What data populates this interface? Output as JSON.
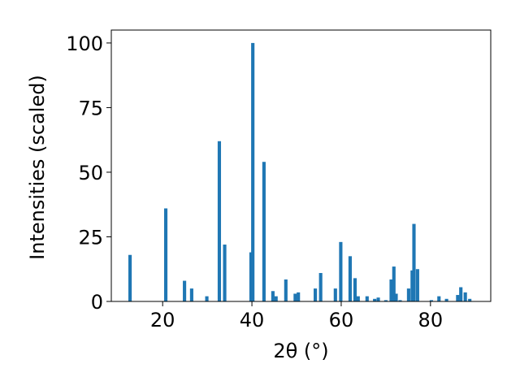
{
  "chart_data": {
    "type": "bar",
    "xlabel": "2θ (°)",
    "ylabel": "Intensities (scaled)",
    "xlim": [
      8.5,
      93.5
    ],
    "ylim": [
      0,
      105
    ],
    "x_ticks": [
      20,
      40,
      60,
      80
    ],
    "y_ticks": [
      0,
      25,
      50,
      75,
      100
    ],
    "bar_color": "#1f77b4",
    "bar_width": 0.75,
    "grid": false,
    "series": [
      {
        "x": [
          12.7,
          20.7,
          24.9,
          26.5,
          29.9,
          32.7,
          33.9,
          39.8,
          40.2,
          42.7,
          44.7,
          45.4,
          47.6,
          49.7,
          50.4,
          54.2,
          55.4,
          58.7,
          59.9,
          62.0,
          63.1,
          63.8,
          65.8,
          67.5,
          68.3,
          70.0,
          71.2,
          71.8,
          72.3,
          73.2,
          75.1,
          75.9,
          76.3,
          77.1,
          80.2,
          81.9,
          83.6,
          86.1,
          86.8,
          87.8,
          88.8
        ],
        "values": [
          18,
          36,
          8,
          5,
          2,
          62,
          22,
          19,
          100,
          54,
          4,
          2,
          8.5,
          3,
          3.5,
          5,
          11,
          5,
          23,
          17.5,
          9,
          2,
          2,
          1,
          1.5,
          0.5,
          8.5,
          13.5,
          3,
          0.5,
          5,
          12,
          30,
          12.5,
          0.5,
          2,
          1,
          2.5,
          5.5,
          3.5,
          1
        ]
      }
    ]
  }
}
